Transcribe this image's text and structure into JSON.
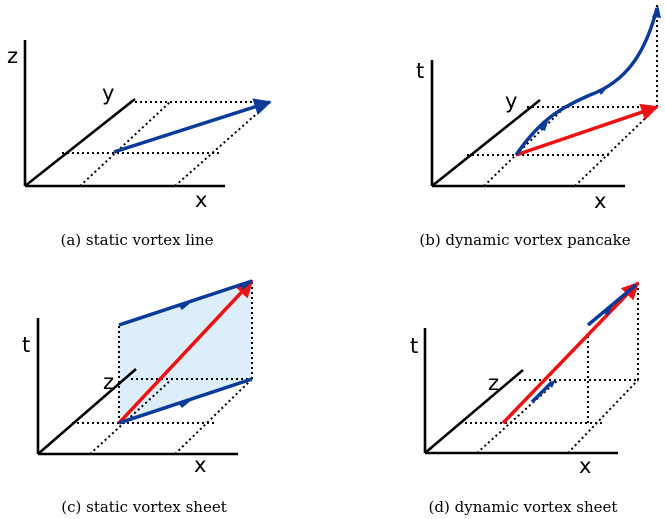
{
  "panels": [
    {
      "caption": "(a) static vortex line",
      "labels": {
        "vertical": "z",
        "depth": "y",
        "horizontal": "x"
      }
    },
    {
      "caption": "(b) dynamic vortex pancake",
      "labels": {
        "vertical": "t",
        "depth": "y",
        "horizontal": "x"
      }
    },
    {
      "caption": "(c) static vortex sheet",
      "labels": {
        "vertical": "t",
        "depth": "z",
        "horizontal": "x"
      }
    },
    {
      "caption": "(d) dynamic vortex sheet",
      "labels": {
        "vertical": "t",
        "depth": "z",
        "horizontal": "x"
      }
    }
  ],
  "colors": {
    "axis": "#000000",
    "vortex_blue": "#0b3a99",
    "vortex_red": "#ee1111",
    "sheet_fill": "#dbeefa"
  }
}
